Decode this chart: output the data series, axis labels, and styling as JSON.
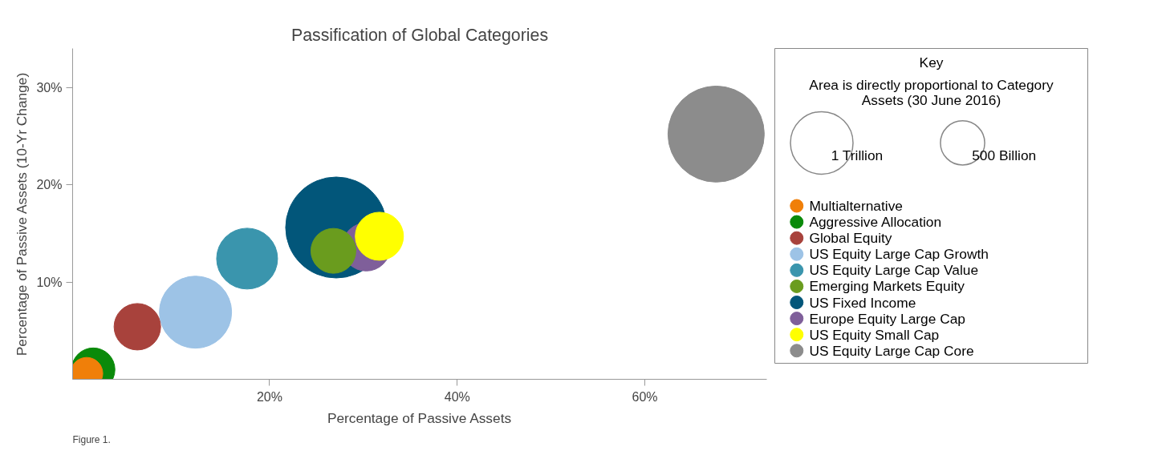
{
  "chart_data": {
    "type": "bubble",
    "title": "Passification of Global Categories",
    "xlabel": "Percentage of Passive Assets",
    "ylabel": "Percentage of Passive Assets (10-Yr Change)",
    "legend_title": "Key",
    "annotations": [
      "Area is directly proportional to Category Assets (30 June 2016)",
      "Figure 1."
    ],
    "xlim": [
      -1,
      73
    ],
    "ylim": [
      0,
      34
    ],
    "xticks": [
      {
        "value": 20,
        "label": "20%"
      },
      {
        "value": 40,
        "label": "40%"
      },
      {
        "value": 60,
        "label": "60%"
      }
    ],
    "yticks": [
      {
        "value": 10,
        "label": "10%"
      },
      {
        "value": 20,
        "label": "20%"
      },
      {
        "value": 30,
        "label": "30%"
      }
    ],
    "size_legend": [
      {
        "value": 1000,
        "label": "1 Trillion"
      },
      {
        "value": 500,
        "label": "500 Billion"
      }
    ],
    "grid": false,
    "legend": "right",
    "series": [
      {
        "name": "Multialternative",
        "color": "#f07f09",
        "x": [
          0.5
        ],
        "values": [
          0.6
        ],
        "sizes": [
          263
        ]
      },
      {
        "name": "Aggressive Allocation",
        "color": "#0a8a0a",
        "x": [
          1.2
        ],
        "values": [
          1.0
        ],
        "sizes": [
          479
        ]
      },
      {
        "name": "Global Equity",
        "color": "#a8423c",
        "x": [
          5.9
        ],
        "values": [
          5.4
        ],
        "sizes": [
          553
        ]
      },
      {
        "name": "US Equity Large Cap Growth",
        "color": "#9dc3e6",
        "x": [
          12.1
        ],
        "values": [
          6.9
        ],
        "sizes": [
          1331
        ]
      },
      {
        "name": "US Equity Large Cap Value",
        "color": "#3a95ad",
        "x": [
          17.6
        ],
        "values": [
          12.4
        ],
        "sizes": [
          949
        ]
      },
      {
        "name": "Emerging Markets Equity",
        "color": "#6a9c1e",
        "x": [
          26.8
        ],
        "values": [
          13.2
        ],
        "sizes": [
          515
        ]
      },
      {
        "name": "US Fixed Income",
        "color": "#02567a",
        "x": [
          27.1
        ],
        "values": [
          15.6
        ],
        "sizes": [
          2610
        ]
      },
      {
        "name": "Europe Equity Large Cap",
        "color": "#7f5f9a",
        "x": [
          30.3
        ],
        "values": [
          13.6
        ],
        "sizes": [
          592
        ]
      },
      {
        "name": "US Equity Small Cap",
        "color": "#ffff00",
        "x": [
          31.7
        ],
        "values": [
          14.7
        ],
        "sizes": [
          592
        ]
      },
      {
        "name": "US Equity Large Cap Core",
        "color": "#8c8c8c",
        "x": [
          67.6
        ],
        "values": [
          25.2
        ],
        "sizes": [
          2367
        ]
      }
    ]
  }
}
